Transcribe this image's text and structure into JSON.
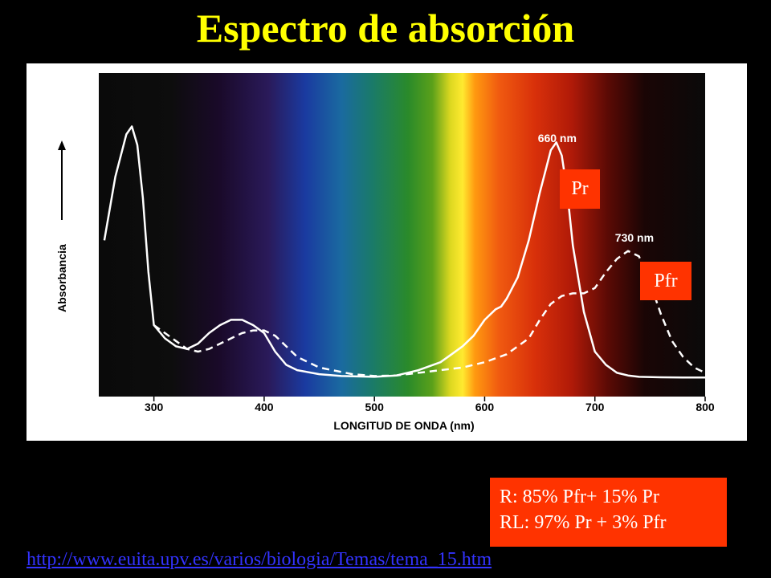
{
  "title": "Espectro de absorción",
  "chart_data": {
    "type": "line",
    "xlabel": "LONGITUD DE ONDA (nm)",
    "ylabel": "Absorbancia",
    "xlim": [
      250,
      800
    ],
    "xticks": [
      300,
      400,
      500,
      600,
      700,
      800
    ],
    "series": [
      {
        "name": "Pr",
        "style": "solid",
        "color": "#ffffff",
        "x": [
          255,
          265,
          275,
          280,
          285,
          290,
          295,
          300,
          310,
          320,
          330,
          340,
          350,
          360,
          370,
          380,
          390,
          400,
          410,
          420,
          430,
          450,
          470,
          500,
          520,
          540,
          560,
          570,
          580,
          590,
          600,
          610,
          615,
          620,
          630,
          640,
          650,
          655,
          660,
          665,
          670,
          675,
          680,
          690,
          700,
          710,
          720,
          730,
          740,
          760,
          780,
          800
        ],
        "y": [
          0.52,
          0.76,
          0.92,
          0.95,
          0.88,
          0.68,
          0.4,
          0.2,
          0.15,
          0.12,
          0.11,
          0.13,
          0.17,
          0.2,
          0.22,
          0.22,
          0.2,
          0.17,
          0.1,
          0.05,
          0.03,
          0.015,
          0.008,
          0.005,
          0.01,
          0.03,
          0.06,
          0.09,
          0.12,
          0.16,
          0.22,
          0.26,
          0.27,
          0.3,
          0.38,
          0.52,
          0.7,
          0.78,
          0.86,
          0.89,
          0.84,
          0.7,
          0.5,
          0.25,
          0.1,
          0.05,
          0.02,
          0.01,
          0.005,
          0.003,
          0.002,
          0.002
        ]
      },
      {
        "name": "Pfr",
        "style": "dashed",
        "color": "#ffffff",
        "x": [
          300,
          310,
          320,
          330,
          340,
          350,
          360,
          370,
          380,
          390,
          400,
          410,
          420,
          430,
          450,
          480,
          500,
          520,
          540,
          560,
          580,
          600,
          620,
          640,
          650,
          660,
          670,
          680,
          690,
          700,
          710,
          720,
          730,
          740,
          750,
          760,
          770,
          780,
          790,
          800
        ],
        "y": [
          0.2,
          0.17,
          0.14,
          0.11,
          0.1,
          0.11,
          0.13,
          0.15,
          0.17,
          0.18,
          0.18,
          0.16,
          0.12,
          0.08,
          0.04,
          0.015,
          0.008,
          0.01,
          0.02,
          0.03,
          0.04,
          0.06,
          0.09,
          0.15,
          0.22,
          0.28,
          0.31,
          0.32,
          0.32,
          0.34,
          0.4,
          0.45,
          0.48,
          0.46,
          0.36,
          0.24,
          0.14,
          0.08,
          0.04,
          0.02
        ]
      }
    ],
    "annotations": [
      {
        "text": "660 nm",
        "x": 660
      },
      {
        "text": "730 nm",
        "x": 730
      }
    ]
  },
  "labels": {
    "pr": "Pr",
    "pfr": "Pfr"
  },
  "ratios": {
    "r": "R: 85% Pfr+ 15% Pr",
    "rl": "RL: 97% Pr + 3% Pfr"
  },
  "link": "http://www.euita.upv.es/varios/biologia/Temas/tema_15.htm",
  "colors": {
    "background": "#000000",
    "title": "#ffff00",
    "label_box": "#ff3300",
    "link": "#3333ff"
  }
}
